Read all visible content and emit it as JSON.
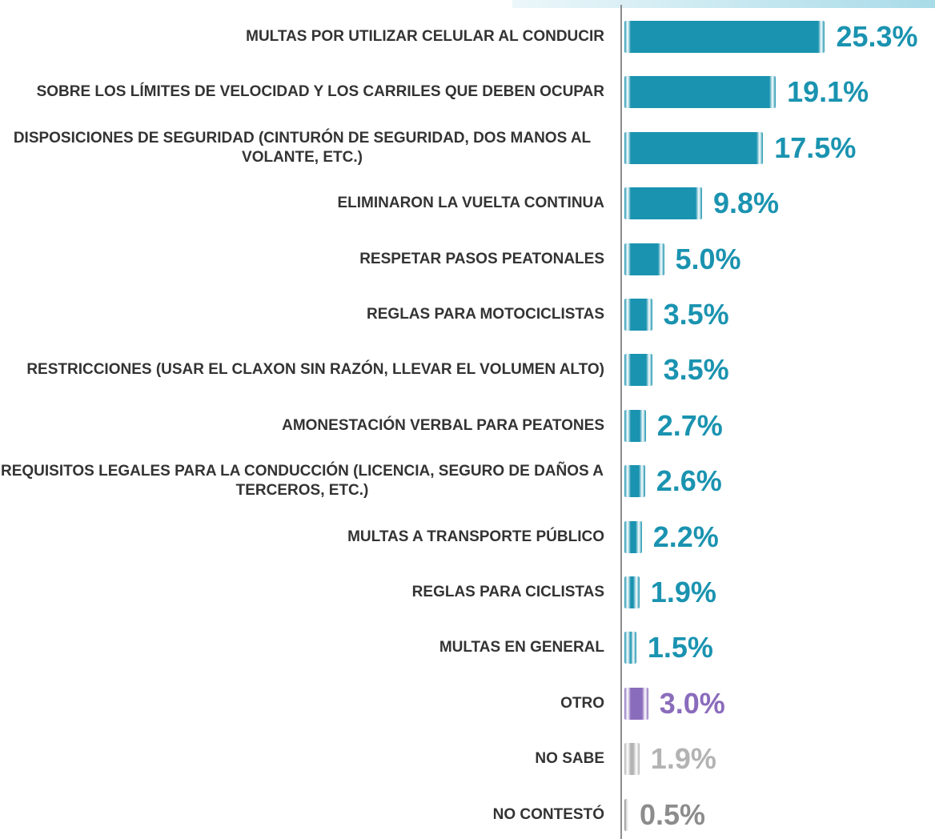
{
  "chart_data": {
    "type": "bar",
    "orientation": "horizontal",
    "categories": [
      "MULTAS POR UTILIZAR CELULAR AL CONDUCIR",
      "SOBRE LOS LÍMITES DE VELOCIDAD Y LOS CARRILES QUE DEBEN OCUPAR",
      "DISPOSICIONES DE SEGURIDAD (CINTURÓN DE SEGURIDAD, DOS MANOS AL VOLANTE, ETC.)",
      "ELIMINARON LA VUELTA CONTINUA",
      "RESPETAR PASOS PEATONALES",
      "REGLAS PARA MOTOCICLISTAS",
      "RESTRICCIONES (USAR EL CLAXON SIN RAZÓN, LLEVAR EL VOLUMEN ALTO)",
      "AMONESTACIÓN VERBAL PARA PEATONES",
      "REQUISITOS LEGALES PARA LA CONDUCCIÓN (LICENCIA, SEGURO DE DAÑOS A TERCEROS, ETC.)",
      "MULTAS A TRANSPORTE PÚBLICO",
      "REGLAS PARA CICLISTAS",
      "MULTAS EN GENERAL",
      "OTRO",
      "NO SABE",
      "NO CONTESTÓ"
    ],
    "values": [
      25.3,
      19.1,
      17.5,
      9.8,
      5.0,
      3.5,
      3.5,
      2.7,
      2.6,
      2.2,
      1.9,
      1.5,
      3.0,
      1.9,
      0.5
    ],
    "value_labels": [
      "25.3%",
      "19.1%",
      "17.5%",
      "9.8%",
      "5.0%",
      "3.5%",
      "3.5%",
      "2.7%",
      "2.6%",
      "2.2%",
      "1.9%",
      "1.5%",
      "3.0%",
      "1.9%",
      "0.5%"
    ],
    "colors": [
      "#1a93b0",
      "#1a93b0",
      "#1a93b0",
      "#1a93b0",
      "#1a93b0",
      "#1a93b0",
      "#1a93b0",
      "#1a93b0",
      "#1a93b0",
      "#1a93b0",
      "#1a93b0",
      "#1a93b0",
      "#8a6cbc",
      "#b3b3b3",
      "#8c8c8c"
    ]
  }
}
